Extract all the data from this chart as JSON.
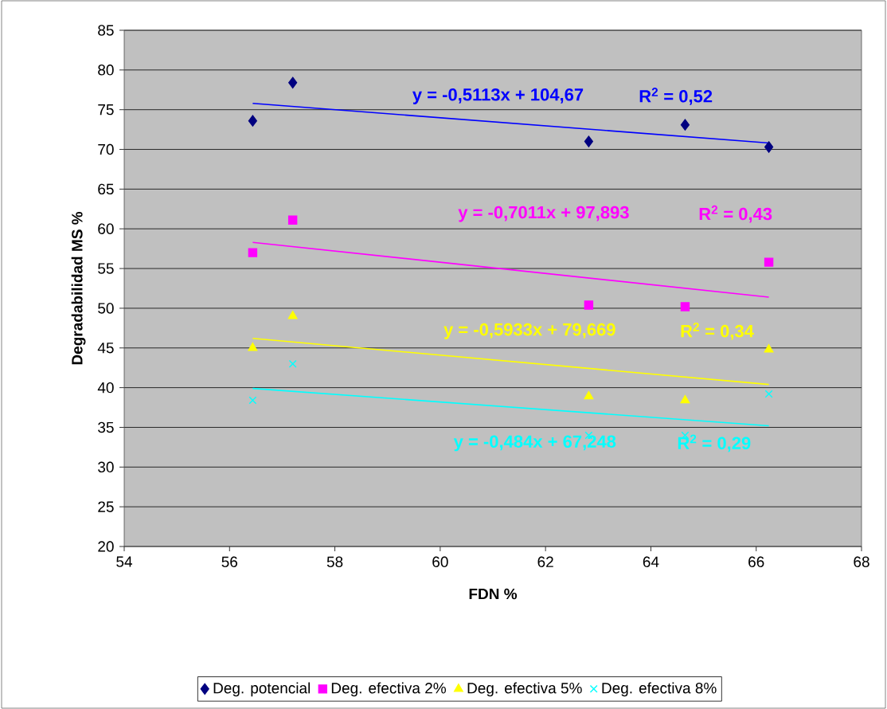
{
  "chart_data": {
    "type": "scatter",
    "xlabel": "FDN %",
    "ylabel": "Degradabilidad MS %",
    "xlim": [
      54,
      68
    ],
    "xticks": [
      54,
      56,
      58,
      60,
      62,
      64,
      66,
      68
    ],
    "ylim": [
      20,
      85
    ],
    "yticks": [
      20,
      25,
      30,
      35,
      40,
      45,
      50,
      55,
      60,
      65,
      70,
      75,
      80,
      85
    ],
    "grid": "y",
    "legend": "bottom",
    "series": [
      {
        "name": "Deg. potencial",
        "color": "#000080",
        "marker": "diamond",
        "x": [
          56.44,
          57.2,
          62.82,
          64.65,
          66.24
        ],
        "values": [
          73.6,
          78.4,
          71.0,
          73.1,
          70.3
        ]
      },
      {
        "name": "Deg. efectiva 2%",
        "color": "#ff00ff",
        "marker": "square",
        "x": [
          56.44,
          57.2,
          62.82,
          64.65,
          66.24
        ],
        "values": [
          57.0,
          61.1,
          50.4,
          50.2,
          55.8
        ]
      },
      {
        "name": "Deg. efectiva 5%",
        "color": "#ffff00",
        "marker": "triangle",
        "x": [
          56.44,
          57.2,
          62.82,
          64.65,
          66.24
        ],
        "values": [
          45.0,
          49.0,
          38.9,
          38.4,
          44.8
        ]
      },
      {
        "name": "Deg. efectiva 8%",
        "color": "#00ffff",
        "marker": "cross",
        "x": [
          56.44,
          57.2,
          62.82,
          64.65,
          66.24
        ],
        "values": [
          38.4,
          43.0,
          34.0,
          34.0,
          39.2
        ]
      },
      {
        "type": "line",
        "color": "#0000ff",
        "line_style": "solid",
        "marker": "none",
        "x": [
          56.44,
          66.24
        ],
        "values": [
          75.8,
          70.8
        ]
      },
      {
        "type": "line",
        "color": "#ff00ff",
        "line_style": "solid",
        "marker": "none",
        "x": [
          56.44,
          66.24
        ],
        "values": [
          58.3,
          51.4
        ]
      },
      {
        "type": "line",
        "color": "#ffff00",
        "line_style": "solid",
        "marker": "none",
        "x": [
          56.44,
          66.24
        ],
        "values": [
          46.2,
          40.4
        ]
      },
      {
        "type": "line",
        "color": "#00ffff",
        "line_style": "solid",
        "marker": "none",
        "x": [
          56.44,
          66.24
        ],
        "values": [
          39.9,
          35.2
        ]
      }
    ],
    "annotations": [
      "y = -0,5113x + 104,67",
      "R$^{2}$ = 0,52",
      "y = -0,7011x + 97,893",
      "R$^{2}$ = 0,43",
      "y = -0,5933x + 79,669",
      "R$^{2}$ = 0,34",
      "y = -0,484x + 67,248",
      "R$^{2}$ = 0,29"
    ]
  }
}
